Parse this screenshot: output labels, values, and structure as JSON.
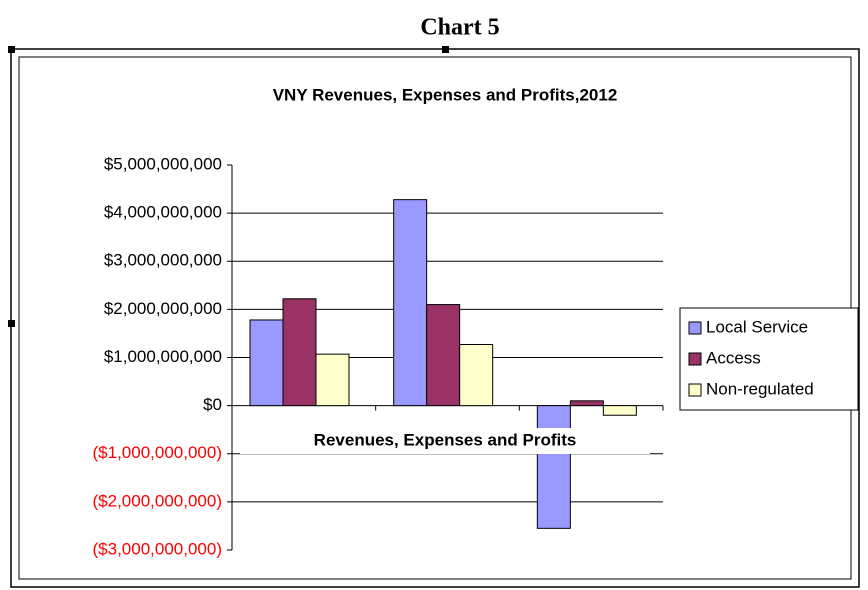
{
  "page_title": "Chart 5",
  "chart_data": {
    "type": "bar",
    "title": "VNY Revenues, Expenses and Profits,2012",
    "x_label": "Revenues, Expenses and Profits",
    "categories": [
      null,
      null,
      null
    ],
    "series": [
      {
        "name": "Local Service",
        "color": "#9999ff",
        "values": [
          1780000000,
          4280000000,
          -2550000000
        ]
      },
      {
        "name": "Access",
        "color": "#993366",
        "values": [
          2220000000,
          2100000000,
          100000000
        ]
      },
      {
        "name": "Non-regulated",
        "color": "#ffffcc",
        "values": [
          1070000000,
          1270000000,
          -200000000
        ]
      }
    ],
    "ylim": [
      -3000000000,
      5000000000
    ],
    "yticks": [
      {
        "value": 5000000000,
        "label": "$5,000,000,000"
      },
      {
        "value": 4000000000,
        "label": "$4,000,000,000"
      },
      {
        "value": 3000000000,
        "label": "$3,000,000,000"
      },
      {
        "value": 2000000000,
        "label": "$2,000,000,000"
      },
      {
        "value": 1000000000,
        "label": "$1,000,000,000"
      },
      {
        "value": 0,
        "label": "$0"
      },
      {
        "value": -1000000000,
        "label": "($1,000,000,000)"
      },
      {
        "value": -2000000000,
        "label": "($2,000,000,000)"
      },
      {
        "value": -3000000000,
        "label": "($3,000,000,000)"
      }
    ],
    "negative_label_color": "#ff0000",
    "grid": true,
    "legend": "right"
  }
}
